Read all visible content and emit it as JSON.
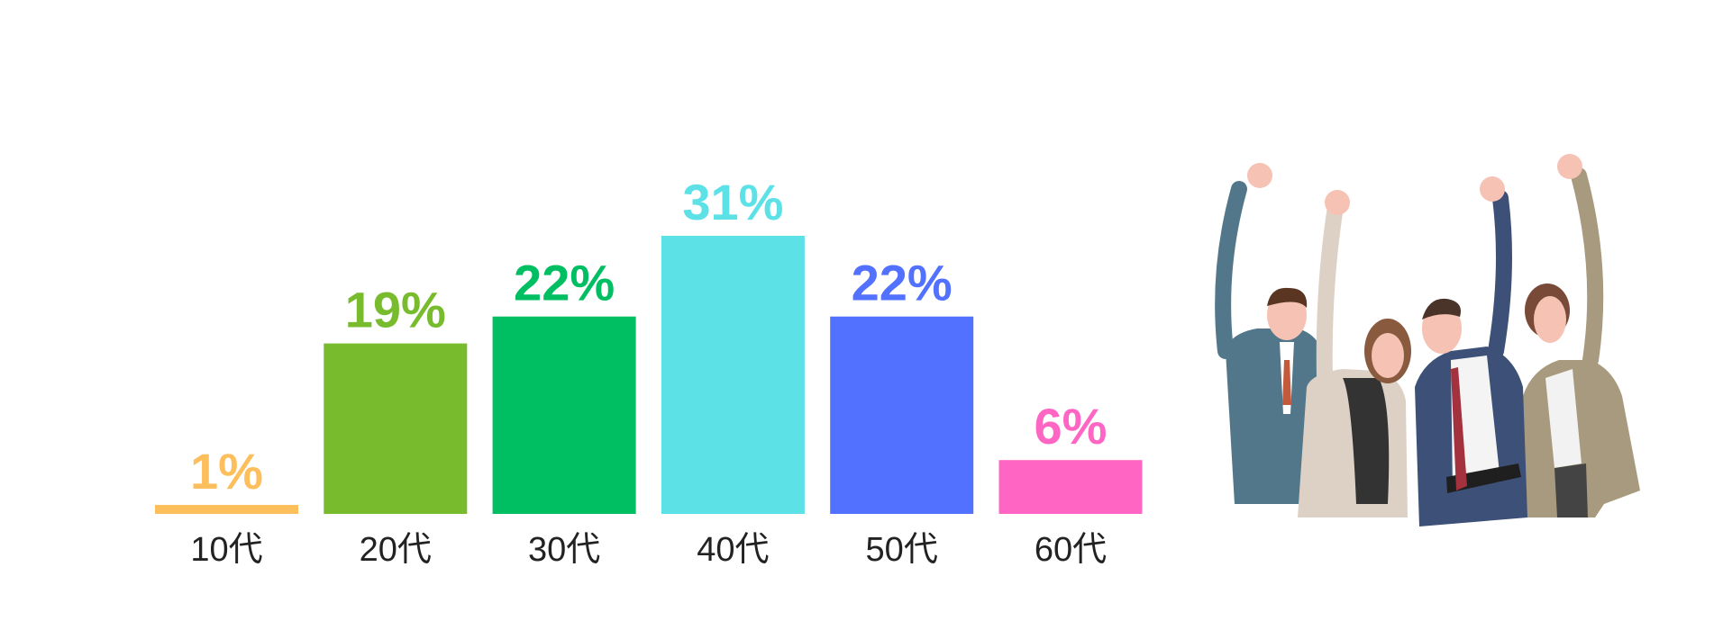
{
  "chart_data": {
    "type": "bar",
    "categories": [
      "10代",
      "20代",
      "30代",
      "40代",
      "50代",
      "60代"
    ],
    "values": [
      1,
      19,
      22,
      31,
      22,
      6
    ],
    "value_labels": [
      "1%",
      "19%",
      "22%",
      "31%",
      "22%",
      "6%"
    ],
    "colors": [
      "#fcbf5c",
      "#78bc2d",
      "#00bf63",
      "#5ce1e6",
      "#5271ff",
      "#ff66c4"
    ]
  }
}
